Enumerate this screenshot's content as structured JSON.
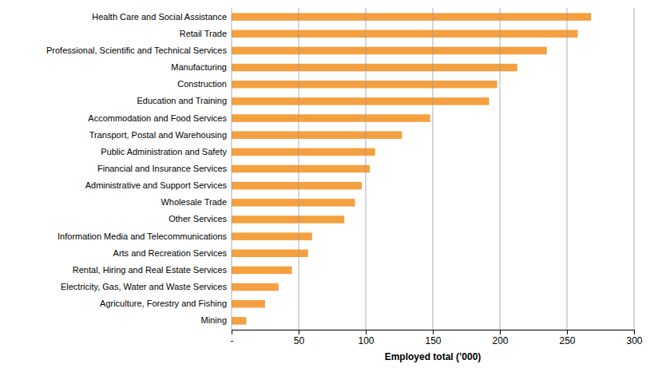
{
  "chart_data": {
    "type": "bar",
    "orientation": "horizontal",
    "categories": [
      "Health Care and Social Assistance",
      "Retail Trade",
      "Professional, Scientific and Technical Services",
      "Manufacturing",
      "Construction",
      "Education and Training",
      "Accommodation and Food Services",
      "Transport, Postal and Warehousing",
      "Public Administration and Safety",
      "Financial and Insurance Services",
      "Administrative and Support Services",
      "Wholesale Trade",
      "Other Services",
      "Information Media and Telecommunications",
      "Arts and Recreation Services",
      "Rental, Hiring and Real Estate Services",
      "Electricity, Gas, Water and Waste Services",
      "Agriculture, Forestry and Fishing",
      "Mining"
    ],
    "values": [
      268,
      258,
      235,
      213,
      198,
      192,
      148,
      127,
      107,
      103,
      97,
      92,
      84,
      60,
      57,
      45,
      35,
      25,
      11
    ],
    "color": "#F5A040",
    "xlabel": "Employed total (’000)",
    "xlim": [
      0,
      300
    ],
    "xticks": [
      {
        "value": 0,
        "label": "-"
      },
      50,
      100,
      150,
      200,
      250,
      300
    ],
    "grid": true
  }
}
